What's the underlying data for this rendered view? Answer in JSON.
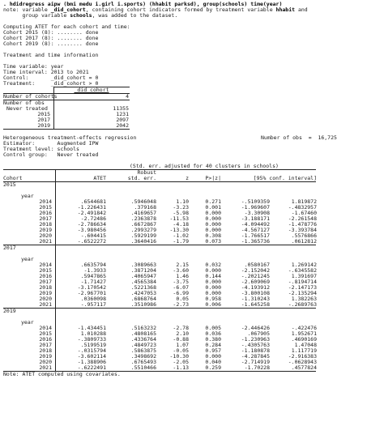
{
  "command": ". hdidregress aipw (bmi medu i.girl i.sports) (hhabit parksd), group(schools) time(year)",
  "note1a": "note: variable ",
  "note1b": "_did_cohort",
  "note1c": ", containing cohort indicators formed by treatment variable ",
  "note1d": "hhabit",
  "note1e": " and",
  "note2a": "      group variable ",
  "note2b": "schools",
  "note2c": ", was added to the dataset.",
  "computing": "Computing ATET for each cohort and time:",
  "cohort_progress": [
    "Cohort 2015 (8): ........ done",
    "Cohort 2017 (8): ........ done",
    "Cohort 2019 (8): ........ done"
  ],
  "tt_info": "Treatment and time information",
  "time_var": "Time variable: year",
  "time_int": "Time interval: 2013 to 2021",
  "control": "Control:       _did_cohort = 0",
  "treatment": "Treatment:     _did_cohort > 0",
  "cohort_table": {
    "header": "_did_cohort",
    "num_cohorts_label": "Number of cohorts",
    "num_cohorts_value": "4",
    "num_obs_label": "Number of obs",
    "rows": [
      {
        "label": "Never treated",
        "value": "11355"
      },
      {
        "label": "2015",
        "value": "1231"
      },
      {
        "label": "2017",
        "value": "2097"
      },
      {
        "label": "2019",
        "value": "2042"
      }
    ]
  },
  "het_title": "Heterogeneous treatment-effects regression",
  "num_obs_text": "Number of obs  =  16,725",
  "estimator": "Estimator:       Augmented IPW",
  "treat_level": "Treatment level: schools",
  "control_group": "Control group:   Never treated",
  "std_note": "(Std. err. adjusted for 40 clusters in schools)",
  "headers": {
    "robust": "Robust",
    "cohort": "Cohort",
    "atet": "ATET",
    "std": "std. err.",
    "z": "z",
    "p": "P>|z|",
    "ci": "[95% conf. interval]",
    "year": "year"
  },
  "blocks": [
    {
      "cohort": "2015",
      "rows": [
        [
          "2014",
          ".6544681",
          ".5946048",
          "1.10",
          "0.271",
          "-.5109359",
          "1.819872"
        ],
        [
          "2015",
          "-1.226431",
          ".379168",
          "-3.23",
          "0.001",
          "-1.969607",
          "-.4832957"
        ],
        [
          "2016",
          "-2.491842",
          ".4169657",
          "-5.98",
          "0.000",
          "-3.30908",
          "-1.67460"
        ],
        [
          "2017",
          "-2.72486",
          ".2363878",
          "-11.53",
          "0.000",
          "-3.188171",
          "-2.261548"
        ],
        [
          "2018",
          "-2.786634",
          ".6672867",
          "-4.18",
          "0.000",
          "-4.094492",
          "-1.478776"
        ],
        [
          "2019",
          "-3.980456",
          ".2993279",
          "-13.30",
          "0.000",
          "-4.567127",
          "-3.393784"
        ],
        [
          "2020",
          "-.604415",
          ".5929199",
          "-1.02",
          "0.308",
          "-1.766517",
          ".5576866"
        ],
        [
          "2021",
          "-.6522272",
          ".3640416",
          "-1.79",
          "0.073",
          "-1.365736",
          ".0612812"
        ]
      ]
    },
    {
      "cohort": "2017",
      "rows": [
        [
          "2014",
          ".6635794",
          ".3089663",
          "2.15",
          "0.032",
          ".0580167",
          "1.269142"
        ],
        [
          "2015",
          "-1.3933",
          ".3871204",
          "-3.60",
          "0.000",
          "-2.152042",
          "-.6345582"
        ],
        [
          "2016",
          ".5947865",
          ".4065947",
          "1.46",
          "0.144",
          "-.2021245",
          "1.391697"
        ],
        [
          "2017",
          "-1.71427",
          ".4565384",
          "-3.75",
          "0.000",
          "-2.609069",
          "-.8194714"
        ],
        [
          "2018",
          "-3.170542",
          ".5221368",
          "-6.07",
          "0.000",
          "-4.193912",
          "-2.147173"
        ],
        [
          "2019",
          "-2.967701",
          ".4247053",
          "-6.99",
          "0.000",
          "-3.800108",
          "-2.135294"
        ],
        [
          "2020",
          ".0360098",
          ".6868764",
          "0.05",
          "0.958",
          "-1.310243",
          "1.382263"
        ],
        [
          "2021",
          "-.957117",
          ".3510986",
          "-2.73",
          "0.006",
          "-1.645258",
          "-.2689763"
        ]
      ]
    },
    {
      "cohort": "2019",
      "rows": [
        [
          "2014",
          "-1.434451",
          ".5163232",
          "-2.78",
          "0.005",
          "-2.446426",
          "-.422476"
        ],
        [
          "2015",
          "1.010288",
          ".4808165",
          "2.10",
          "0.036",
          ".067905",
          "1.952671"
        ],
        [
          "2016",
          "-.3809733",
          ".4336764",
          "-0.88",
          "0.380",
          "-1.230963",
          ".4690169"
        ],
        [
          "2017",
          ".5199519",
          ".4849723",
          "1.07",
          "0.284",
          "-.4305763",
          "1.47048"
        ],
        [
          "2018",
          "-.0315794",
          ".5863875",
          "-0.05",
          "0.957",
          "-1.180878",
          "1.117719"
        ],
        [
          "2019",
          "-3.602114",
          ".3498692",
          "-10.30",
          "0.000",
          "-4.287845",
          "-2.916383"
        ],
        [
          "2020",
          "-1.388906",
          ".6765493",
          "-2.05",
          "0.040",
          "-2.714919",
          "-.0628943"
        ],
        [
          "2021",
          "-.6222491",
          ".5510466",
          "-1.13",
          "0.259",
          "-1.70228",
          ".4577824"
        ]
      ]
    }
  ],
  "footnote": "Note: ATET computed using covariates."
}
